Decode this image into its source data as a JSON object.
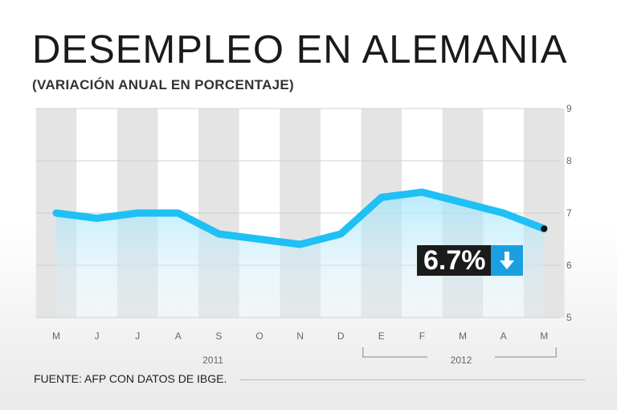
{
  "chart_data": {
    "type": "line",
    "title": "DESEMPLEO EN ALEMANIA",
    "subtitle": "(VARIACIÓN ANUAL EN PORCENTAJE)",
    "categories": [
      "M",
      "J",
      "J",
      "A",
      "S",
      "O",
      "N",
      "D",
      "E",
      "F",
      "M",
      "A",
      "M"
    ],
    "series": [
      {
        "name": "Desempleo",
        "values": [
          7.0,
          6.9,
          7.0,
          7.0,
          6.6,
          6.5,
          6.4,
          6.6,
          7.3,
          7.4,
          7.2,
          7.0,
          6.7
        ]
      }
    ],
    "ylim": [
      5,
      9
    ],
    "yticks": [
      5,
      6,
      7,
      8,
      9
    ],
    "year_labels": [
      "2011",
      "2012"
    ],
    "line_color": "#1ec0f5",
    "highlight": {
      "value_label": "6.7%",
      "trend": "down",
      "arrow_color": "#1aa0e0"
    },
    "source": "FUENTE: AFP CON DATOS DE IBGE."
  }
}
